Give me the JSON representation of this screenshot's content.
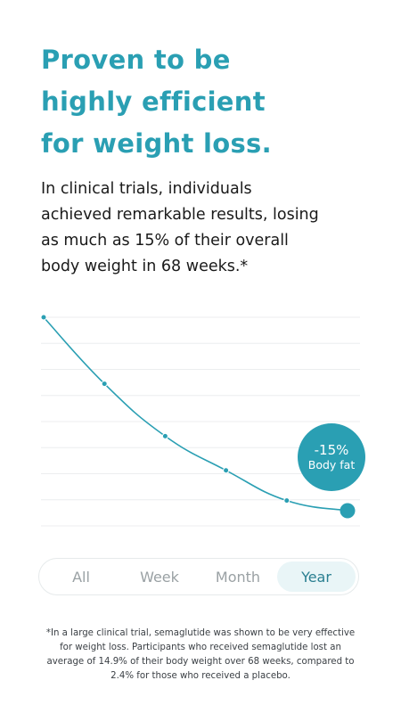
{
  "headline": {
    "line1": "Proven to be",
    "line2": "highly efficient",
    "line3": "for weight loss."
  },
  "intro": {
    "line1": "In clinical trials, individuals",
    "line2": "achieved remarkable results, losing",
    "line3": "as much as 15% of their overall",
    "line4": "body weight in 68 weeks.*"
  },
  "chart": {
    "accent_color": "#2a9fb3",
    "grid_lines": 9,
    "points": [
      0,
      0.33,
      0.59,
      0.76,
      0.91,
      0.96
    ],
    "badge": {
      "value": "-15%",
      "label": "Body fat"
    }
  },
  "range_selector": {
    "options": [
      "All",
      "Week",
      "Month",
      "Year"
    ],
    "selected": "Year"
  },
  "footnote": {
    "line1": "*In a large clinical trial, semaglutide was shown to be very effective",
    "line2": "for weight loss. Participants who received semaglutide lost an",
    "line3": "average of 14.9% of their body weight over 68 weeks, compared to",
    "line4": "2.4% for those who received a placebo."
  }
}
